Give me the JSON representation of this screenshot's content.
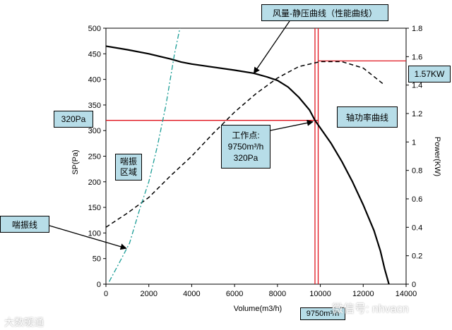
{
  "chart_data": {
    "type": "line",
    "xlabel": "Volume(m3/h)",
    "ylabel_left": "SP(Pa)",
    "ylabel_right": "Power(KW)",
    "xlim": [
      0,
      14000
    ],
    "ylim_left": [
      0,
      500
    ],
    "ylim_right": [
      0,
      1.8
    ],
    "x_ticks": [
      0,
      2000,
      4000,
      6000,
      8000,
      10000,
      12000,
      14000
    ],
    "y_ticks_left": [
      0,
      50,
      100,
      150,
      200,
      250,
      300,
      350,
      400,
      450,
      500
    ],
    "y_ticks_right": [
      0,
      0.2,
      0.4,
      0.6,
      0.8,
      1,
      1.2,
      1.4,
      1.6,
      1.8
    ],
    "grid": false,
    "series": [
      {
        "axis": "left",
        "style": "solid-black",
        "points": [
          [
            0,
            465
          ],
          [
            1000,
            458
          ],
          [
            2000,
            450
          ],
          [
            3000,
            440
          ],
          [
            3500,
            434
          ],
          [
            4000,
            430
          ],
          [
            5000,
            424
          ],
          [
            6000,
            418
          ],
          [
            6900,
            412
          ],
          [
            7500,
            405
          ],
          [
            8000,
            398
          ],
          [
            8500,
            385
          ],
          [
            9000,
            365
          ],
          [
            9500,
            340
          ],
          [
            9750,
            320
          ],
          [
            10500,
            275
          ],
          [
            11000,
            240
          ],
          [
            11500,
            200
          ],
          [
            12000,
            155
          ],
          [
            12500,
            105
          ],
          [
            12800,
            65
          ],
          [
            13000,
            30
          ],
          [
            13200,
            0
          ]
        ]
      },
      {
        "axis": "right",
        "style": "dashed-black",
        "points": [
          [
            0,
            0.4
          ],
          [
            1000,
            0.5
          ],
          [
            2000,
            0.61
          ],
          [
            3000,
            0.76
          ],
          [
            4000,
            0.9
          ],
          [
            5000,
            1.06
          ],
          [
            6000,
            1.21
          ],
          [
            7000,
            1.34
          ],
          [
            8000,
            1.45
          ],
          [
            9000,
            1.53
          ],
          [
            10000,
            1.565
          ],
          [
            11000,
            1.565
          ],
          [
            12000,
            1.52
          ],
          [
            13000,
            1.4
          ]
        ]
      },
      {
        "axis": "left",
        "style": "dashdot-teal",
        "points": [
          [
            150,
            5
          ],
          [
            600,
            40
          ],
          [
            1100,
            80
          ],
          [
            1600,
            150
          ],
          [
            2000,
            200
          ],
          [
            2400,
            270
          ],
          [
            2800,
            350
          ],
          [
            3200,
            450
          ],
          [
            3450,
            500
          ]
        ]
      }
    ],
    "reference_lines": [
      {
        "orientation": "horizontal",
        "axis": "left",
        "value": 320,
        "x_from": 0,
        "x_to": 9900
      },
      {
        "orientation": "vertical",
        "value": 9750,
        "axis": "left",
        "from": 0,
        "to": 500
      },
      {
        "orientation": "vertical",
        "value": 9900,
        "axis": "left",
        "from": 0,
        "to": 500
      },
      {
        "orientation": "horizontal",
        "axis": "right",
        "value": 1.57,
        "x_from": 9900,
        "x_to": 14000
      }
    ],
    "operating_point": {
      "x": 9750,
      "y": 320
    },
    "annotations": {
      "curve_label": "风量-静压曲线（性能曲线）",
      "sp_value": "320Pa",
      "power_value": "1.57KW",
      "power_curve_label": "轴功率曲线",
      "surge_zone": "喘振区域",
      "operating_point_label": "工作点:",
      "operating_point_flow": "9750m³/h",
      "operating_point_pressure": "320Pa",
      "surge_line": "喘振线",
      "x_bottom_value": "9750m³/h"
    },
    "colors": {
      "performance": "#000000",
      "reference": "#e0141e",
      "surge": "#1b9d96",
      "label_box": "#b7dde8"
    }
  },
  "watermark": {
    "left": "大数暖通",
    "right": "微信号: nhvacn"
  }
}
